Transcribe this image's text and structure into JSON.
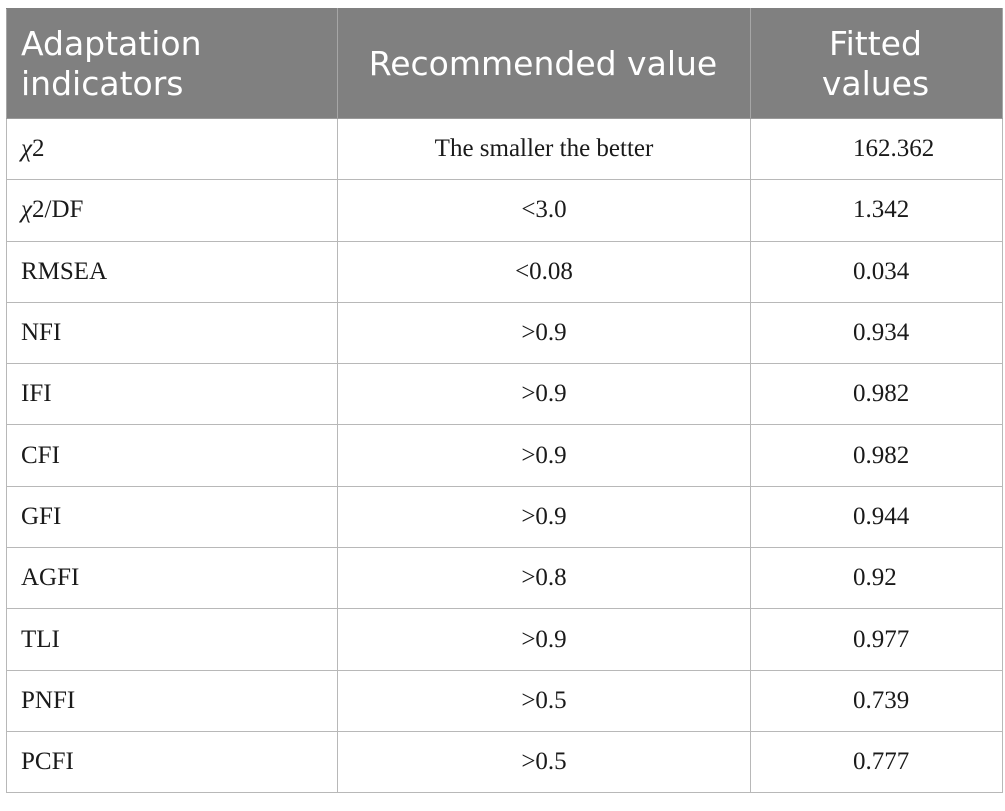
{
  "table": {
    "headers": [
      {
        "line1": "Adaptation",
        "line2": "indicators"
      },
      {
        "line1": "Recommended value",
        "line2": ""
      },
      {
        "line1": "Fitted",
        "line2": "values"
      }
    ],
    "rows": [
      {
        "indicator": "χ2",
        "recommended": "The smaller the better",
        "fitted": "162.362"
      },
      {
        "indicator": "χ2/DF",
        "recommended": "<3.0",
        "fitted": "1.342"
      },
      {
        "indicator": "RMSEA",
        "recommended": "<0.08",
        "fitted": "0.034"
      },
      {
        "indicator": "NFI",
        "recommended": ">0.9",
        "fitted": "0.934"
      },
      {
        "indicator": "IFI",
        "recommended": ">0.9",
        "fitted": "0.982"
      },
      {
        "indicator": "CFI",
        "recommended": ">0.9",
        "fitted": "0.982"
      },
      {
        "indicator": "GFI",
        "recommended": ">0.9",
        "fitted": "0.944"
      },
      {
        "indicator": "AGFI",
        "recommended": ">0.8",
        "fitted": "0.92"
      },
      {
        "indicator": "TLI",
        "recommended": ">0.9",
        "fitted": "0.977"
      },
      {
        "indicator": "PNFI",
        "recommended": ">0.5",
        "fitted": "0.739"
      },
      {
        "indicator": "PCFI",
        "recommended": ">0.5",
        "fitted": "0.777"
      }
    ]
  }
}
